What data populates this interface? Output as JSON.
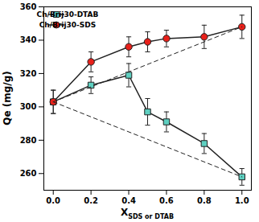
{
  "chart_data": {
    "type": "line",
    "x_label": "X",
    "x_label_sub": "SDS or DTAB",
    "y_label": "Qe (mg/g)",
    "x": [
      0,
      0.2,
      0.4,
      0.5,
      0.6,
      0.8,
      1.0
    ],
    "xlim": [
      -0.05,
      1.05
    ],
    "xticks": [
      {
        "value": 0,
        "label": "0.0"
      },
      0.2,
      0.4,
      0.6,
      0.8,
      {
        "value": 1,
        "label": "1.0"
      }
    ],
    "ylim": [
      250,
      360
    ],
    "yticks": [
      260,
      280,
      300,
      320,
      340,
      360
    ],
    "legend": "top-left",
    "series": [
      {
        "name": "Ch/Brij30-DTAB",
        "color": "#5ecfc0",
        "marker": "square",
        "line_style": "solid",
        "values": [
          303,
          313,
          319,
          297,
          291,
          278,
          258
        ],
        "errors": [
          7,
          5,
          7,
          8,
          6,
          6,
          5
        ]
      },
      {
        "name": "Ch/Brij30-SDS",
        "color": "#e8201a",
        "marker": "circle",
        "line_style": "solid",
        "values": [
          303,
          327,
          336,
          339,
          341,
          342,
          348
        ],
        "errors": [
          7,
          6,
          6,
          6,
          5,
          7,
          7
        ]
      },
      {
        "marker": "none",
        "line_style": "dashed",
        "x": [
          0,
          1
        ],
        "values": [
          303,
          348
        ]
      },
      {
        "marker": "none",
        "line_style": "dashed",
        "x": [
          0,
          1
        ],
        "values": [
          303,
          258
        ]
      }
    ]
  }
}
